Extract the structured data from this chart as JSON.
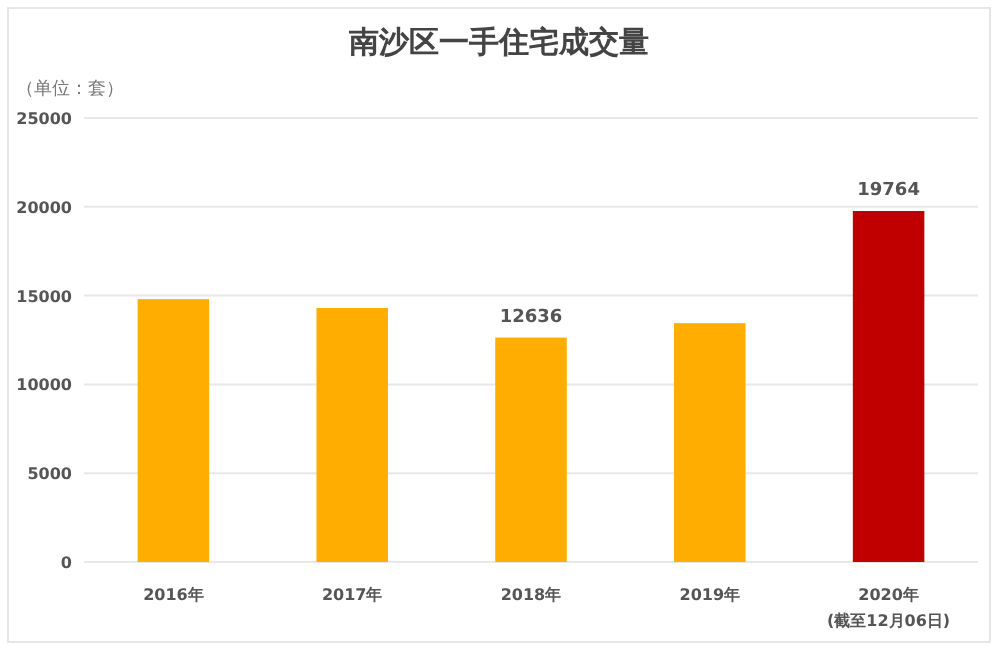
{
  "chart_data": {
    "type": "bar",
    "title": "南沙区一手住宅成交量",
    "ylabel": "（单位：套）",
    "categories": [
      "2016年",
      "2017年",
      "2018年",
      "2019年",
      "2020年\n(截至12月06日)"
    ],
    "values": [
      14800,
      14300,
      12636,
      13450,
      19764
    ],
    "colors": [
      "#ffae00",
      "#ffae00",
      "#ffae00",
      "#ffae00",
      "#c00000"
    ],
    "value_labels": [
      null,
      null,
      "12636",
      null,
      "19764"
    ],
    "ylim": [
      0,
      25000
    ],
    "yticks": [
      0,
      5000,
      10000,
      15000,
      20000,
      25000
    ],
    "grid": "y"
  }
}
